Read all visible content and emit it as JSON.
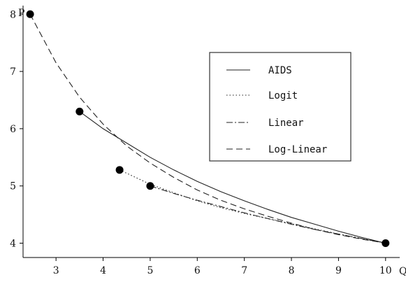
{
  "chart_data": {
    "type": "line",
    "title": "",
    "xlabel": "Q",
    "ylabel": "P",
    "xlim": [
      2.3,
      10.3
    ],
    "ylim": [
      3.75,
      8.15
    ],
    "x_ticks": [
      3,
      4,
      5,
      6,
      7,
      8,
      9,
      10
    ],
    "y_ticks": [
      4,
      5,
      6,
      7,
      8
    ],
    "legend_position": "top-right",
    "grid": false,
    "series": [
      {
        "name": "AIDS",
        "style": "solid",
        "x": [
          3.5,
          4,
          4.5,
          5,
          5.5,
          6,
          6.5,
          7,
          7.5,
          8,
          8.5,
          9,
          9.5,
          10
        ],
        "y": [
          6.3,
          6.0,
          5.75,
          5.5,
          5.28,
          5.08,
          4.9,
          4.74,
          4.59,
          4.45,
          4.33,
          4.21,
          4.1,
          4.0
        ]
      },
      {
        "name": "Logit",
        "style": "dotted",
        "x": [
          4.35,
          5,
          5.5,
          6,
          6.5,
          7,
          7.5,
          8,
          8.5,
          9,
          9.5,
          10
        ],
        "y": [
          5.28,
          5.03,
          4.88,
          4.74,
          4.62,
          4.52,
          4.43,
          4.34,
          4.25,
          4.16,
          4.08,
          4.0
        ]
      },
      {
        "name": "Linear",
        "style": "dashdot",
        "x": [
          5,
          5.5,
          6,
          6.5,
          7,
          7.5,
          8,
          8.5,
          9,
          9.5,
          10
        ],
        "y": [
          5.0,
          4.87,
          4.75,
          4.64,
          4.53,
          4.43,
          4.33,
          4.24,
          4.16,
          4.08,
          4.0
        ]
      },
      {
        "name": "Log-Linear",
        "style": "dashed",
        "x": [
          2.45,
          3,
          3.5,
          4,
          4.5,
          5,
          5.5,
          6,
          6.5,
          7,
          7.5,
          8,
          8.5,
          9,
          9.5,
          10
        ],
        "y": [
          8.0,
          7.15,
          6.55,
          6.08,
          5.7,
          5.4,
          5.15,
          4.93,
          4.75,
          4.6,
          4.47,
          4.35,
          4.24,
          4.15,
          4.07,
          4.0
        ]
      }
    ],
    "markers": {
      "x": [
        2.45,
        3.5,
        4.35,
        5,
        10
      ],
      "y": [
        8.0,
        6.3,
        5.28,
        5.0,
        4.0
      ]
    }
  },
  "colors": {
    "line": "#222222",
    "marker": "#000000",
    "legend_border": "#333333"
  }
}
